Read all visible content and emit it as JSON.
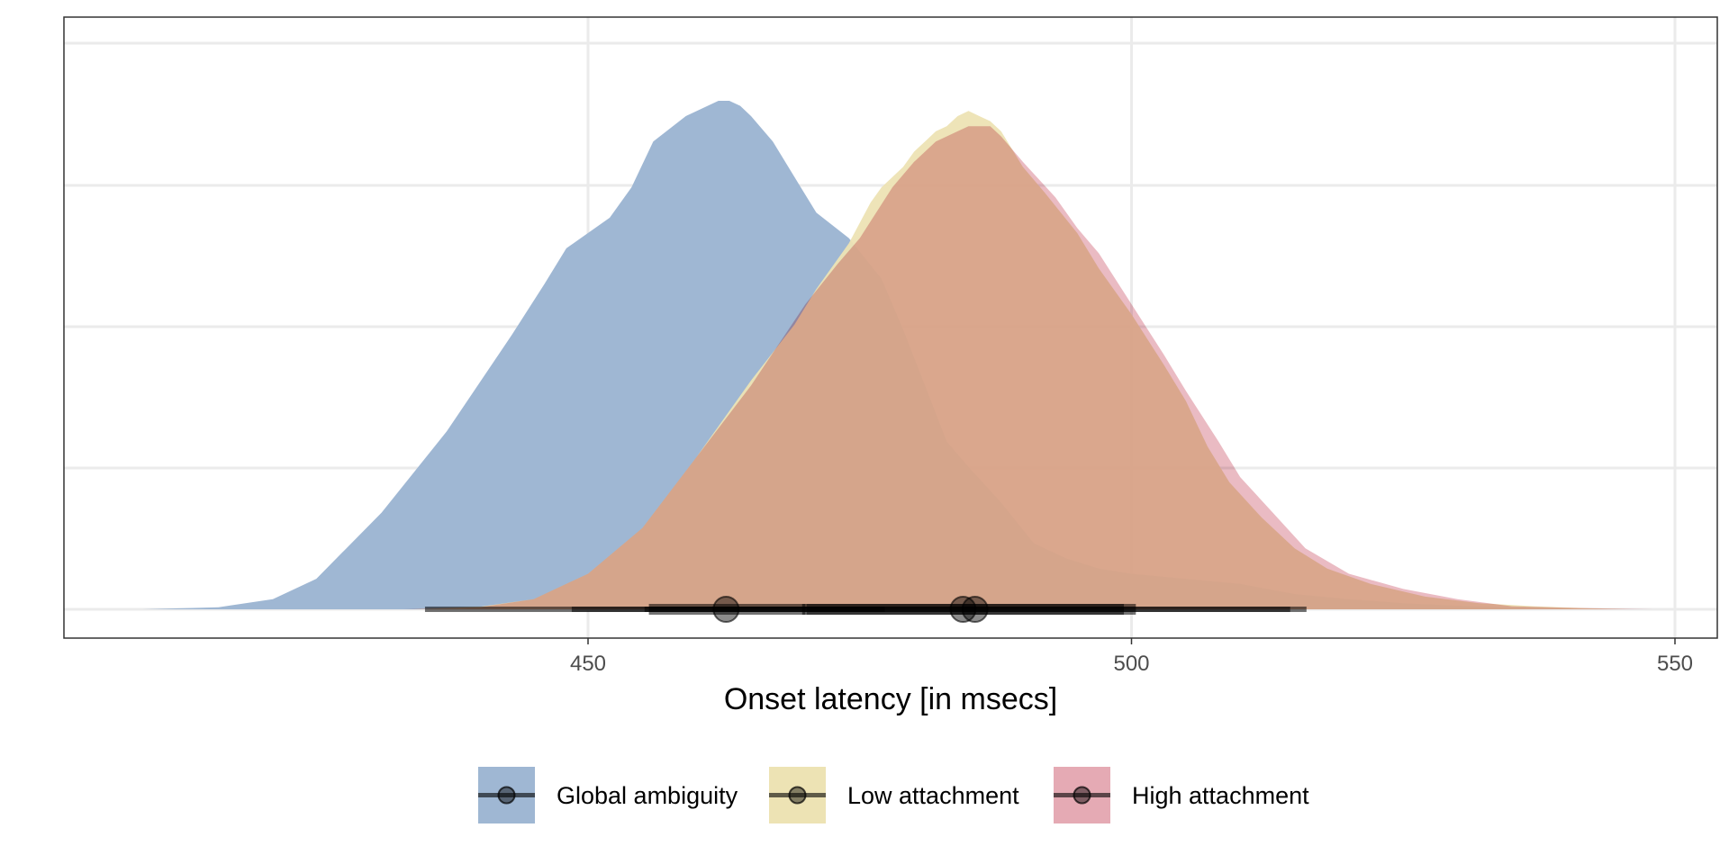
{
  "chart_data": {
    "type": "area",
    "title": "",
    "xlabel": "Onset latency [in msecs]",
    "ylabel": "",
    "xlim": [
      402,
      554
    ],
    "xticks": [
      450,
      500,
      550
    ],
    "xtick_labels": [
      "450",
      "500",
      "550"
    ],
    "y_tick_labels_shown": false,
    "grid": true,
    "legend_position": "bottom",
    "series": [
      {
        "name": "Global ambiguity",
        "color": "#9fb7d3",
        "density_x": [
          409,
          416,
          421,
          425,
          431,
          437,
          443,
          446,
          448,
          450,
          452,
          454,
          456,
          459,
          461,
          462,
          463,
          464,
          465,
          467,
          469,
          471,
          474,
          477,
          479,
          481,
          483,
          485,
          488,
          491,
          494,
          497,
          500,
          505,
          510,
          515,
          520,
          525,
          530,
          535,
          540,
          545
        ],
        "density_y": [
          0,
          0.004,
          0.02,
          0.06,
          0.19,
          0.35,
          0.54,
          0.64,
          0.71,
          0.74,
          0.77,
          0.83,
          0.92,
          0.97,
          0.99,
          1.0,
          1.0,
          0.99,
          0.97,
          0.92,
          0.85,
          0.78,
          0.73,
          0.65,
          0.55,
          0.44,
          0.33,
          0.28,
          0.21,
          0.13,
          0.1,
          0.08,
          0.07,
          0.06,
          0.05,
          0.03,
          0.02,
          0.012,
          0.007,
          0.004,
          0.002,
          0
        ],
        "median": 462.7,
        "interval_66": [
          455.6,
          470.0
        ],
        "interval_95": [
          448.5,
          477.3
        ]
      },
      {
        "name": "Low attachment",
        "color": "#ede3b4",
        "density_x": [
          434,
          440,
          445,
          450,
          455,
          460,
          465,
          469,
          471,
          474,
          476,
          477,
          479,
          480,
          481,
          482,
          483,
          484,
          485,
          486,
          487,
          488,
          490,
          492,
          495,
          497,
          500,
          503,
          505,
          507,
          509,
          512,
          515,
          518,
          522,
          527,
          532,
          537,
          542,
          546
        ],
        "density_y": [
          0,
          0.005,
          0.02,
          0.07,
          0.16,
          0.3,
          0.45,
          0.56,
          0.63,
          0.72,
          0.8,
          0.83,
          0.87,
          0.9,
          0.92,
          0.94,
          0.95,
          0.97,
          0.98,
          0.97,
          0.96,
          0.94,
          0.87,
          0.82,
          0.74,
          0.67,
          0.58,
          0.48,
          0.41,
          0.32,
          0.25,
          0.18,
          0.12,
          0.08,
          0.05,
          0.025,
          0.012,
          0.006,
          0.002,
          0
        ],
        "median": 484.5,
        "interval_66": [
          469.7,
          499.3
        ],
        "interval_95": [
          455.2,
          514.6
        ]
      },
      {
        "name": "High attachment",
        "color": "#e5aab4",
        "density_x": [
          433,
          440,
          445,
          450,
          455,
          460,
          465,
          470,
          473,
          475,
          478,
          480,
          482,
          484,
          485,
          486,
          487,
          488,
          490,
          493,
          495,
          497,
          500,
          503,
          505,
          508,
          510,
          513,
          516,
          520,
          525,
          530,
          535,
          540,
          545,
          548
        ],
        "density_y": [
          0,
          0.004,
          0.02,
          0.07,
          0.16,
          0.3,
          0.44,
          0.6,
          0.68,
          0.73,
          0.83,
          0.88,
          0.92,
          0.94,
          0.95,
          0.95,
          0.95,
          0.93,
          0.88,
          0.81,
          0.75,
          0.7,
          0.6,
          0.5,
          0.43,
          0.33,
          0.26,
          0.19,
          0.12,
          0.07,
          0.04,
          0.02,
          0.006,
          0.003,
          0.001,
          0
        ],
        "median": 485.6,
        "interval_66": [
          470.1,
          500.4
        ],
        "interval_95": [
          435.0,
          516.1
        ]
      }
    ]
  },
  "overlay_color": "#d08a7f",
  "legend_items": [
    {
      "label": "Global ambiguity",
      "color": "#9fb7d3"
    },
    {
      "label": "Low attachment",
      "color": "#ede3b4"
    },
    {
      "label": "High attachment",
      "color": "#e5aab4"
    }
  ]
}
